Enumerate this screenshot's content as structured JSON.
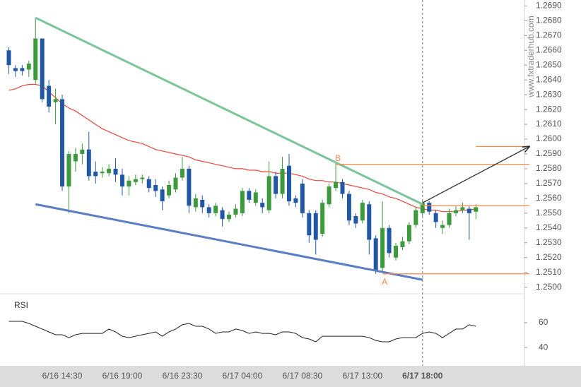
{
  "chart_data": {
    "type": "candlestick",
    "watermark": "www.fxtraderhub.com",
    "categories": [
      null,
      null,
      null,
      null,
      null,
      null,
      null,
      null,
      "6/16 14:30",
      null,
      null,
      null,
      null,
      null,
      null,
      null,
      null,
      "6/16 19:00",
      null,
      null,
      null,
      null,
      null,
      null,
      null,
      null,
      "6/16 23:30",
      null,
      null,
      null,
      null,
      null,
      null,
      null,
      null,
      "6/17 04:00",
      null,
      null,
      null,
      null,
      null,
      null,
      null,
      null,
      "6/17 08:30",
      null,
      null,
      null,
      null,
      null,
      null,
      null,
      null,
      "6/17 13:00",
      null,
      null,
      null,
      null,
      null,
      null,
      null,
      null,
      "6/17 18:00",
      null,
      null,
      null,
      null,
      null,
      null,
      null,
      null
    ],
    "open": [
      1.266,
      1.2648,
      1.2648,
      1.2647,
      1.264,
      1.2668,
      1.2636,
      1.2625,
      1.2627,
      1.2568,
      1.2585,
      1.259,
      1.2593,
      1.2578,
      1.2577,
      1.2577,
      1.258,
      1.2576,
      1.2568,
      1.2571,
      1.2573,
      1.2573,
      1.2569,
      1.2566,
      1.2562,
      1.2566,
      1.2574,
      1.258,
      1.2554,
      1.2559,
      1.2554,
      1.255,
      1.2552,
      1.2546,
      1.2549,
      1.255,
      1.2565,
      1.2557,
      1.2557,
      1.2552,
      1.2575,
      1.2563,
      1.2582,
      1.256,
      1.257,
      1.255,
      1.255,
      1.2536,
      1.2556,
      1.2567,
      1.2571,
      1.2563,
      1.2548,
      1.2545,
      1.2556,
      1.2533,
      1.2513,
      1.254,
      1.252,
      1.2527,
      1.2531,
      1.2542,
      1.255,
      1.2557,
      1.255,
      1.254,
      1.2542,
      1.255,
      1.2552,
      1.2553,
      1.2551
    ],
    "high": [
      1.2662,
      1.265,
      1.265,
      1.2653,
      1.2682,
      1.2668,
      1.264,
      1.2634,
      1.263,
      1.2592,
      1.2594,
      1.2597,
      1.2605,
      1.2585,
      1.2581,
      1.2583,
      1.2587,
      1.258,
      1.2575,
      1.2576,
      1.2576,
      1.2575,
      1.2573,
      1.2568,
      1.2572,
      1.2577,
      1.2588,
      1.2582,
      1.2563,
      1.2562,
      1.2556,
      1.2557,
      1.2554,
      1.2551,
      1.2556,
      1.2567,
      1.2567,
      1.2566,
      1.256,
      1.2585,
      1.2578,
      1.2588,
      1.259,
      1.2562,
      1.2573,
      1.2552,
      1.2552,
      1.2559,
      1.257,
      1.2584,
      1.2573,
      1.2565,
      1.255,
      1.2559,
      1.2558,
      1.2535,
      1.2558,
      1.2542,
      1.253,
      1.2534,
      1.2544,
      1.2554,
      1.2558,
      1.2558,
      1.2552,
      1.2545,
      1.2553,
      1.2555,
      1.2557,
      1.2555,
      1.2556
    ],
    "low": [
      1.2644,
      1.2642,
      1.2643,
      1.2642,
      1.2637,
      1.2625,
      1.2618,
      1.261,
      1.2565,
      1.255,
      1.2578,
      1.2583,
      1.2572,
      1.257,
      1.2574,
      1.2575,
      1.2571,
      1.2562,
      1.2562,
      1.2569,
      1.257,
      1.2564,
      1.2561,
      1.2552,
      1.256,
      1.2564,
      1.2572,
      1.255,
      1.2551,
      1.255,
      1.2547,
      1.2548,
      1.2541,
      1.2544,
      1.2547,
      1.2548,
      1.2557,
      1.2555,
      1.255,
      1.255,
      1.256,
      1.256,
      1.2555,
      1.2554,
      1.2547,
      1.253,
      1.2522,
      1.2534,
      1.2554,
      1.2565,
      1.256,
      1.2542,
      1.254,
      1.2543,
      1.2522,
      1.2509,
      1.251,
      1.252,
      1.2518,
      1.2525,
      1.2529,
      1.254,
      1.2548,
      1.2549,
      1.254,
      1.2536,
      1.254,
      1.2548,
      1.255,
      1.2532,
      1.2546
    ],
    "close": [
      1.265,
      1.2646,
      1.2646,
      1.2651,
      1.2668,
      1.2627,
      1.2622,
      1.2627,
      1.2568,
      1.259,
      1.259,
      1.2593,
      1.2575,
      1.2575,
      1.2578,
      1.258,
      1.2576,
      1.2568,
      1.2572,
      1.2573,
      1.2574,
      1.2567,
      1.2565,
      1.2558,
      1.2569,
      1.2574,
      1.258,
      1.2555,
      1.256,
      1.2554,
      1.255,
      1.2555,
      1.2546,
      1.2549,
      1.2553,
      1.2565,
      1.2559,
      1.2564,
      1.2554,
      1.2575,
      1.2563,
      1.258,
      1.2558,
      1.2557,
      1.255,
      1.2535,
      1.2532,
      1.2557,
      1.2568,
      1.2571,
      1.2563,
      1.2545,
      1.2543,
      1.2557,
      1.2532,
      1.2511,
      1.254,
      1.2523,
      1.2528,
      1.2531,
      1.2542,
      1.2552,
      1.2557,
      1.2551,
      1.2544,
      1.2542,
      1.255,
      1.2552,
      1.2554,
      1.255,
      1.2554
    ],
    "up_color": "#3b9a3b",
    "down_color": "#2158a6",
    "ma": {
      "color": "#e8453c",
      "values": [
        1.2633,
        1.2634,
        1.2636,
        1.2637,
        1.2637,
        1.2636,
        1.2632,
        1.2628,
        1.2624,
        1.2621,
        1.2619,
        1.2616,
        1.2613,
        1.261,
        1.2607,
        1.2605,
        1.2603,
        1.2601,
        1.2599,
        1.2598,
        1.2597,
        1.2595,
        1.2593,
        1.2592,
        1.2591,
        1.259,
        1.2589,
        1.2588,
        1.2586,
        1.2585,
        1.2584,
        1.2583,
        1.2582,
        1.2581,
        1.258,
        1.258,
        1.2579,
        1.2579,
        1.2578,
        1.2578,
        1.2577,
        1.2577,
        1.2577,
        1.2576,
        1.2575,
        1.2573,
        1.2572,
        1.2572,
        1.2571,
        1.2571,
        1.257,
        1.2569,
        1.2568,
        1.2567,
        1.2566,
        1.2564,
        1.2563,
        1.2561,
        1.256,
        1.2558,
        1.2556,
        1.2554,
        1.2553,
        1.2552,
        1.2552,
        1.2551,
        1.2551,
        1.2551,
        1.2552,
        1.2552,
        1.2553
      ]
    },
    "ylim": [
      1.2496,
      1.2694
    ],
    "yticks": [
      {
        "value": 1.25,
        "label": "1.2500"
      },
      {
        "value": 1.251,
        "label": "1.2510"
      },
      {
        "value": 1.252,
        "label": "1.2520"
      },
      {
        "value": 1.253,
        "label": "1.2530"
      },
      {
        "value": 1.254,
        "label": "1.2540"
      },
      {
        "value": 1.255,
        "label": "1.2550"
      },
      {
        "value": 1.256,
        "label": "1.2560"
      },
      {
        "value": 1.257,
        "label": "1.2570"
      },
      {
        "value": 1.258,
        "label": "1.2580"
      },
      {
        "value": 1.259,
        "label": "1.2590"
      },
      {
        "value": 1.26,
        "label": "1.2600"
      },
      {
        "value": 1.261,
        "label": "1.2610"
      },
      {
        "value": 1.262,
        "label": "1.2620"
      },
      {
        "value": 1.263,
        "label": "1.2630"
      },
      {
        "value": 1.264,
        "label": "1.2640"
      },
      {
        "value": 1.265,
        "label": "1.2650"
      },
      {
        "value": 1.266,
        "label": "1.2660"
      },
      {
        "value": 1.267,
        "label": "1.2670"
      },
      {
        "value": 1.268,
        "label": "1.2680"
      },
      {
        "value": 1.269,
        "label": "1.2690"
      }
    ],
    "lines": [
      {
        "color": "#7cc59b",
        "x": [
          4,
          62
        ],
        "y": [
          1.2682,
          1.2556
        ]
      },
      {
        "color": "#5a7ec4",
        "x": [
          4,
          62
        ],
        "y": [
          1.2556,
          1.2505
        ]
      },
      {
        "color": "#f5894a",
        "x": [
          49,
          78
        ],
        "y": [
          1.2583,
          1.2583
        ],
        "label": "B",
        "label_side": "above"
      },
      {
        "color": "#f5894a",
        "x": [
          56,
          78
        ],
        "y": [
          1.2509,
          1.2509
        ],
        "label": "A",
        "label_side": "below"
      },
      {
        "color": "#f5894a",
        "x": [
          62,
          78
        ],
        "y": [
          1.2555,
          1.2555
        ]
      },
      {
        "color": "#f5894a",
        "x": [
          70,
          78
        ],
        "y": [
          1.2595,
          1.2595
        ]
      },
      {
        "color": "#333333",
        "x": [
          62,
          78
        ],
        "y": [
          1.2557,
          1.2595
        ],
        "arrow": true
      }
    ],
    "rsi": {
      "label": "RSI",
      "color": "#222222",
      "ylim": [
        27,
        81
      ],
      "yticks": [
        40,
        60
      ],
      "values": [
        61.1,
        61.1,
        61.1,
        59.4,
        57.1,
        54.9,
        52.6,
        50.3,
        50.3,
        48.0,
        50.3,
        51.4,
        51.4,
        51.4,
        51.4,
        54.9,
        52.6,
        49.1,
        48.0,
        49.1,
        50.3,
        51.4,
        52.6,
        49.1,
        52.6,
        54.9,
        58.3,
        59.4,
        57.1,
        57.1,
        54.9,
        51.4,
        52.6,
        52.6,
        54.9,
        53.7,
        51.4,
        52.6,
        51.4,
        51.4,
        50.3,
        52.6,
        52.6,
        51.4,
        48.0,
        46.9,
        44.6,
        49.1,
        49.1,
        49.1,
        49.1,
        49.1,
        49.1,
        49.1,
        48.0,
        45.7,
        44.6,
        44.6,
        46.9,
        48.0,
        48.0,
        48.0,
        51.4,
        52.6,
        51.4,
        48.0,
        51.4,
        54.9,
        54.9,
        58.3,
        57.1
      ]
    }
  }
}
